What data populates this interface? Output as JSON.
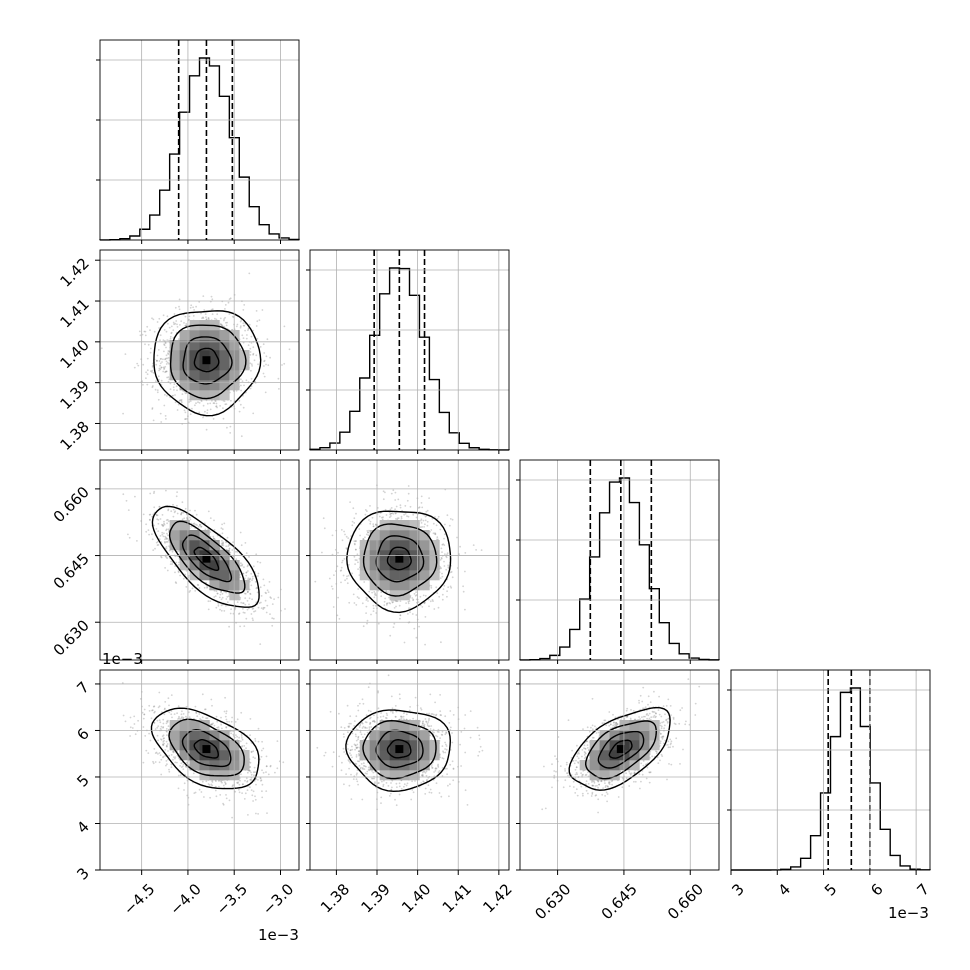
{
  "chart_data": {
    "type": "corner",
    "title": "",
    "grid": true,
    "colors": {
      "line": "#000000",
      "grid": "#b0b0b0",
      "points": "#808080",
      "frame": "#000000"
    },
    "parameters": [
      {
        "range": [
          -4.95,
          -2.8
        ],
        "ticks": [
          -4.5,
          -4.0,
          -3.5,
          -3.0
        ],
        "tick_labels": [
          "−4.5",
          "−4.0",
          "−3.5",
          "−3.0"
        ],
        "offset_label": "1e−3",
        "mean": -3.8,
        "sigma": 0.28,
        "quantiles": [
          -4.1,
          -3.8,
          -3.52
        ]
      },
      {
        "range": [
          1.3735,
          1.4225
        ],
        "ticks": [
          1.38,
          1.39,
          1.4,
          1.41,
          1.42
        ],
        "tick_labels": [
          "1.38",
          "1.39",
          "1.40",
          "1.41",
          "1.42"
        ],
        "offset_label": "",
        "mean": 1.3955,
        "sigma": 0.0062,
        "quantiles": [
          1.3893,
          1.3955,
          1.4017
        ]
      },
      {
        "range": [
          0.6215,
          0.6665
        ],
        "ticks": [
          0.63,
          0.645,
          0.66
        ],
        "tick_labels": [
          "0.630",
          "0.645",
          "0.660"
        ],
        "offset_label": "",
        "mean": 0.6443,
        "sigma": 0.0055,
        "quantiles": [
          0.6374,
          0.6443,
          0.6512
        ]
      },
      {
        "range": [
          3.0,
          7.3
        ],
        "ticks": [
          3,
          4,
          5,
          6,
          7
        ],
        "tick_labels": [
          "3",
          "4",
          "5",
          "6",
          "7"
        ],
        "offset_label": "1e−3",
        "mean": 5.6,
        "sigma": 0.42,
        "quantiles": [
          5.1,
          5.6,
          6.0
        ]
      }
    ],
    "correlations": [
      {
        "row": 1,
        "col": 0,
        "rho": 0.0
      },
      {
        "row": 2,
        "col": 0,
        "rho": -0.72
      },
      {
        "row": 2,
        "col": 1,
        "rho": 0.0
      },
      {
        "row": 3,
        "col": 0,
        "rho": -0.45
      },
      {
        "row": 3,
        "col": 1,
        "rho": 0.0
      },
      {
        "row": 3,
        "col": 2,
        "rho": 0.55
      }
    ],
    "histogram_bins": 20
  }
}
